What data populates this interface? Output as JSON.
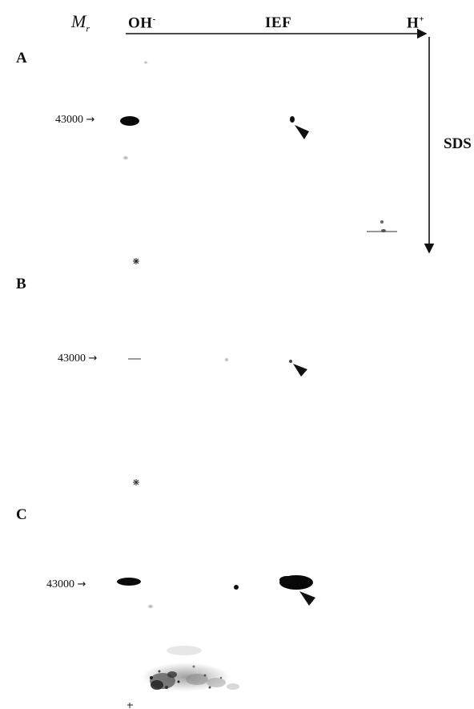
{
  "axis": {
    "mr_main": "M",
    "mr_sub": "r",
    "oh": "OH",
    "oh_sup": "-",
    "ief": "IEF",
    "h": "H",
    "h_sup": "+",
    "sds": "SDS"
  },
  "panels": [
    {
      "letter": "A",
      "marker_label": "43000",
      "marker_arrow": "→"
    },
    {
      "letter": "B",
      "marker_label": "43000",
      "marker_arrow": "→"
    },
    {
      "letter": "C",
      "marker_label": "43000",
      "marker_arrow": "→"
    }
  ],
  "colors": {
    "ink": "#111111",
    "background": "#ffffff"
  }
}
